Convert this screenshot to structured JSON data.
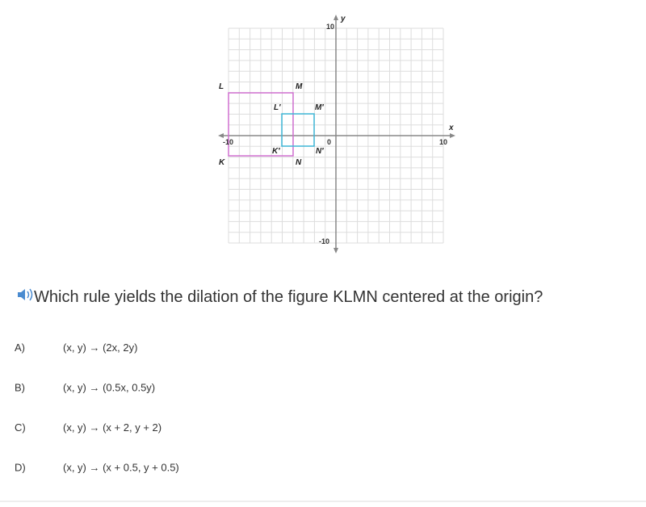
{
  "graph": {
    "y_axis_label": "y",
    "x_axis_label": "x",
    "ticks": {
      "y_top": "10",
      "y_bottom": "-10",
      "x_left": "-10",
      "x_right": "10",
      "origin": "0"
    },
    "points": {
      "L": "L",
      "M": "M",
      "K": "K",
      "N": "N",
      "L_prime": "L′",
      "M_prime": "M′",
      "K_prime": "K′",
      "N_prime": "N′"
    }
  },
  "question": "Which rule yields the dilation of the figure KLMN centered at the origin?",
  "options": [
    {
      "letter": "A)",
      "rule": "(x, y) → (2x, 2y)"
    },
    {
      "letter": "B)",
      "rule": "(x, y) → (0.5x, 0.5y)"
    },
    {
      "letter": "C)",
      "rule": "(x, y) → (x + 2, y + 2)"
    },
    {
      "letter": "D)",
      "rule": "(x, y) → (x + 0.5, y + 0.5)"
    }
  ]
}
